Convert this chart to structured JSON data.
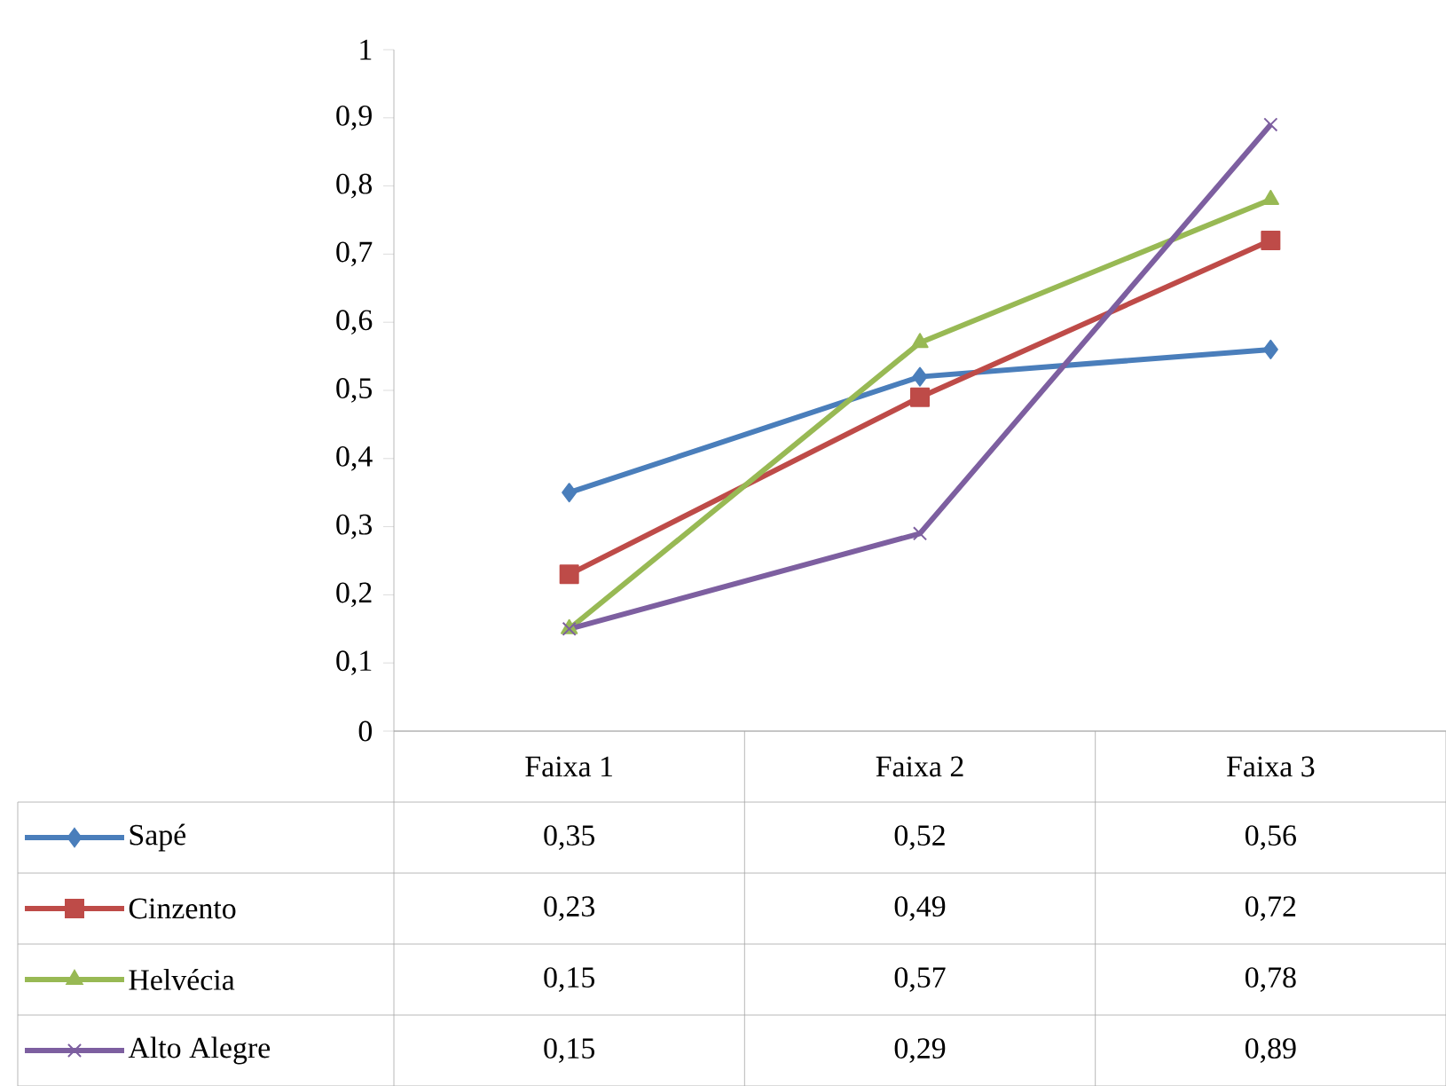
{
  "chart_data": {
    "type": "line",
    "categories": [
      "Faixa 1",
      "Faixa 2",
      "Faixa 3"
    ],
    "series": [
      {
        "name": "Sapé",
        "color": "#4a7ebb",
        "marker": "diamond",
        "values": [
          0.35,
          0.52,
          0.56
        ],
        "value_labels": [
          "0,35",
          "0,52",
          "0,56"
        ]
      },
      {
        "name": "Cinzento",
        "color": "#be4b48",
        "marker": "square",
        "values": [
          0.23,
          0.49,
          0.72
        ],
        "value_labels": [
          "0,23",
          "0,49",
          "0,72"
        ]
      },
      {
        "name": "Helvécia",
        "color": "#98b954",
        "marker": "triangle",
        "values": [
          0.15,
          0.57,
          0.78
        ],
        "value_labels": [
          "0,15",
          "0,57",
          "0,78"
        ]
      },
      {
        "name": "Alto Alegre",
        "color": "#7d5fa0",
        "marker": "cross",
        "values": [
          0.15,
          0.29,
          0.89
        ],
        "value_labels": [
          "0,15",
          "0,29",
          "0,89"
        ]
      }
    ],
    "ylim": [
      0,
      1
    ],
    "yticks": [
      0,
      {
        "value": 0.1,
        "label": "0,1"
      },
      {
        "value": 0.2,
        "label": "0,2"
      },
      {
        "value": 0.3,
        "label": "0,3"
      },
      {
        "value": 0.4,
        "label": "0,4"
      },
      {
        "value": 0.5,
        "label": "0,5"
      },
      {
        "value": 0.6,
        "label": "0,6"
      },
      {
        "value": 0.7,
        "label": "0,7"
      },
      {
        "value": 0.8,
        "label": "0,8"
      },
      {
        "value": 0.9,
        "label": "0,9"
      },
      1
    ],
    "grid": false,
    "legend": "bottom",
    "line_style": "solid"
  }
}
